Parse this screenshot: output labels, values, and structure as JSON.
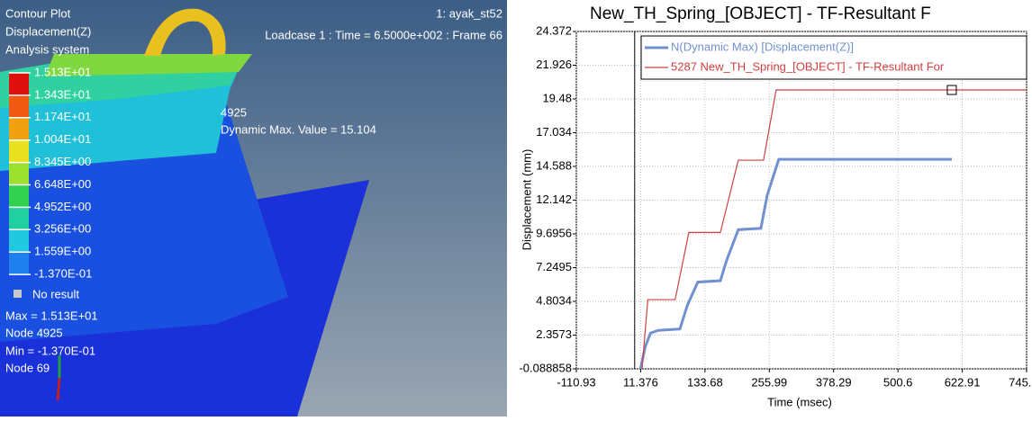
{
  "viewer": {
    "title": "Contour Plot",
    "result": "Displacement(Z)",
    "system": "Analysis system",
    "model": "1: ayak_st52",
    "loadcase": "Loadcase 1 : Time = 6.5000e+002 : Frame 66",
    "node_tag": "4925",
    "dynamic_max": "Dynamic Max. Value =  15.104",
    "legend": [
      {
        "label": "1.513E+01",
        "color": "#e01010"
      },
      {
        "label": "1.343E+01",
        "color": "#f05a10"
      },
      {
        "label": "1.174E+01",
        "color": "#f0a010"
      },
      {
        "label": "1.004E+01",
        "color": "#e8e020"
      },
      {
        "label": "8.345E+00",
        "color": "#9ee030"
      },
      {
        "label": "6.648E+00",
        "color": "#30d050"
      },
      {
        "label": "4.952E+00",
        "color": "#20d0a0"
      },
      {
        "label": "3.256E+00",
        "color": "#20c8e0"
      },
      {
        "label": "1.559E+00",
        "color": "#2080f0"
      },
      {
        "label": "-1.370E-01",
        "color": "#1030e0"
      }
    ],
    "no_result": "No result",
    "max": "Max = 1.513E+01",
    "max_node": "Node 4925",
    "min": "Min = -1.370E-01",
    "min_node": "Node 69"
  },
  "chart_data": {
    "type": "line",
    "title": "New_TH_Spring_[OBJECT] - TF-Resultant F",
    "x_label": "Time (msec)",
    "y_label": "Displacement (mm)",
    "xlim": [
      -110.93,
      745.21
    ],
    "xticks": [
      -110.93,
      11.376,
      133.68,
      255.99,
      378.29,
      500.6,
      622.91,
      745.21
    ],
    "ylim": [
      -0.088858,
      24.372
    ],
    "yticks": [
      -0.088858,
      2.3573,
      4.8034,
      7.2495,
      9.6956,
      12.142,
      14.588,
      17.034,
      19.48,
      21.926,
      24.372
    ],
    "grid": true,
    "series": [
      {
        "name": "N(Dynamic Max) [Displacement(Z)]",
        "color": "#7090d0",
        "x": [
          11,
          20,
          30,
          45,
          86,
          100,
          120,
          163,
          175,
          197,
          240,
          252,
          274,
          300,
          400,
          500,
          603
        ],
        "values": [
          -0.09,
          1.5,
          2.5,
          2.7,
          2.8,
          4.5,
          6.2,
          6.3,
          7.8,
          10.0,
          10.1,
          12.5,
          15.1,
          15.1,
          15.1,
          15.1,
          15.1
        ]
      },
      {
        "name": "5287 New_TH_Spring_[OBJECT] - TF-Resultant For",
        "color": "#d04040",
        "x": [
          14,
          25,
          77,
          103,
          163,
          197,
          245,
          269,
          745
        ],
        "values": [
          -0.09,
          4.93,
          4.93,
          9.8,
          9.8,
          15.04,
          15.04,
          20.13,
          20.13
        ]
      }
    ]
  }
}
